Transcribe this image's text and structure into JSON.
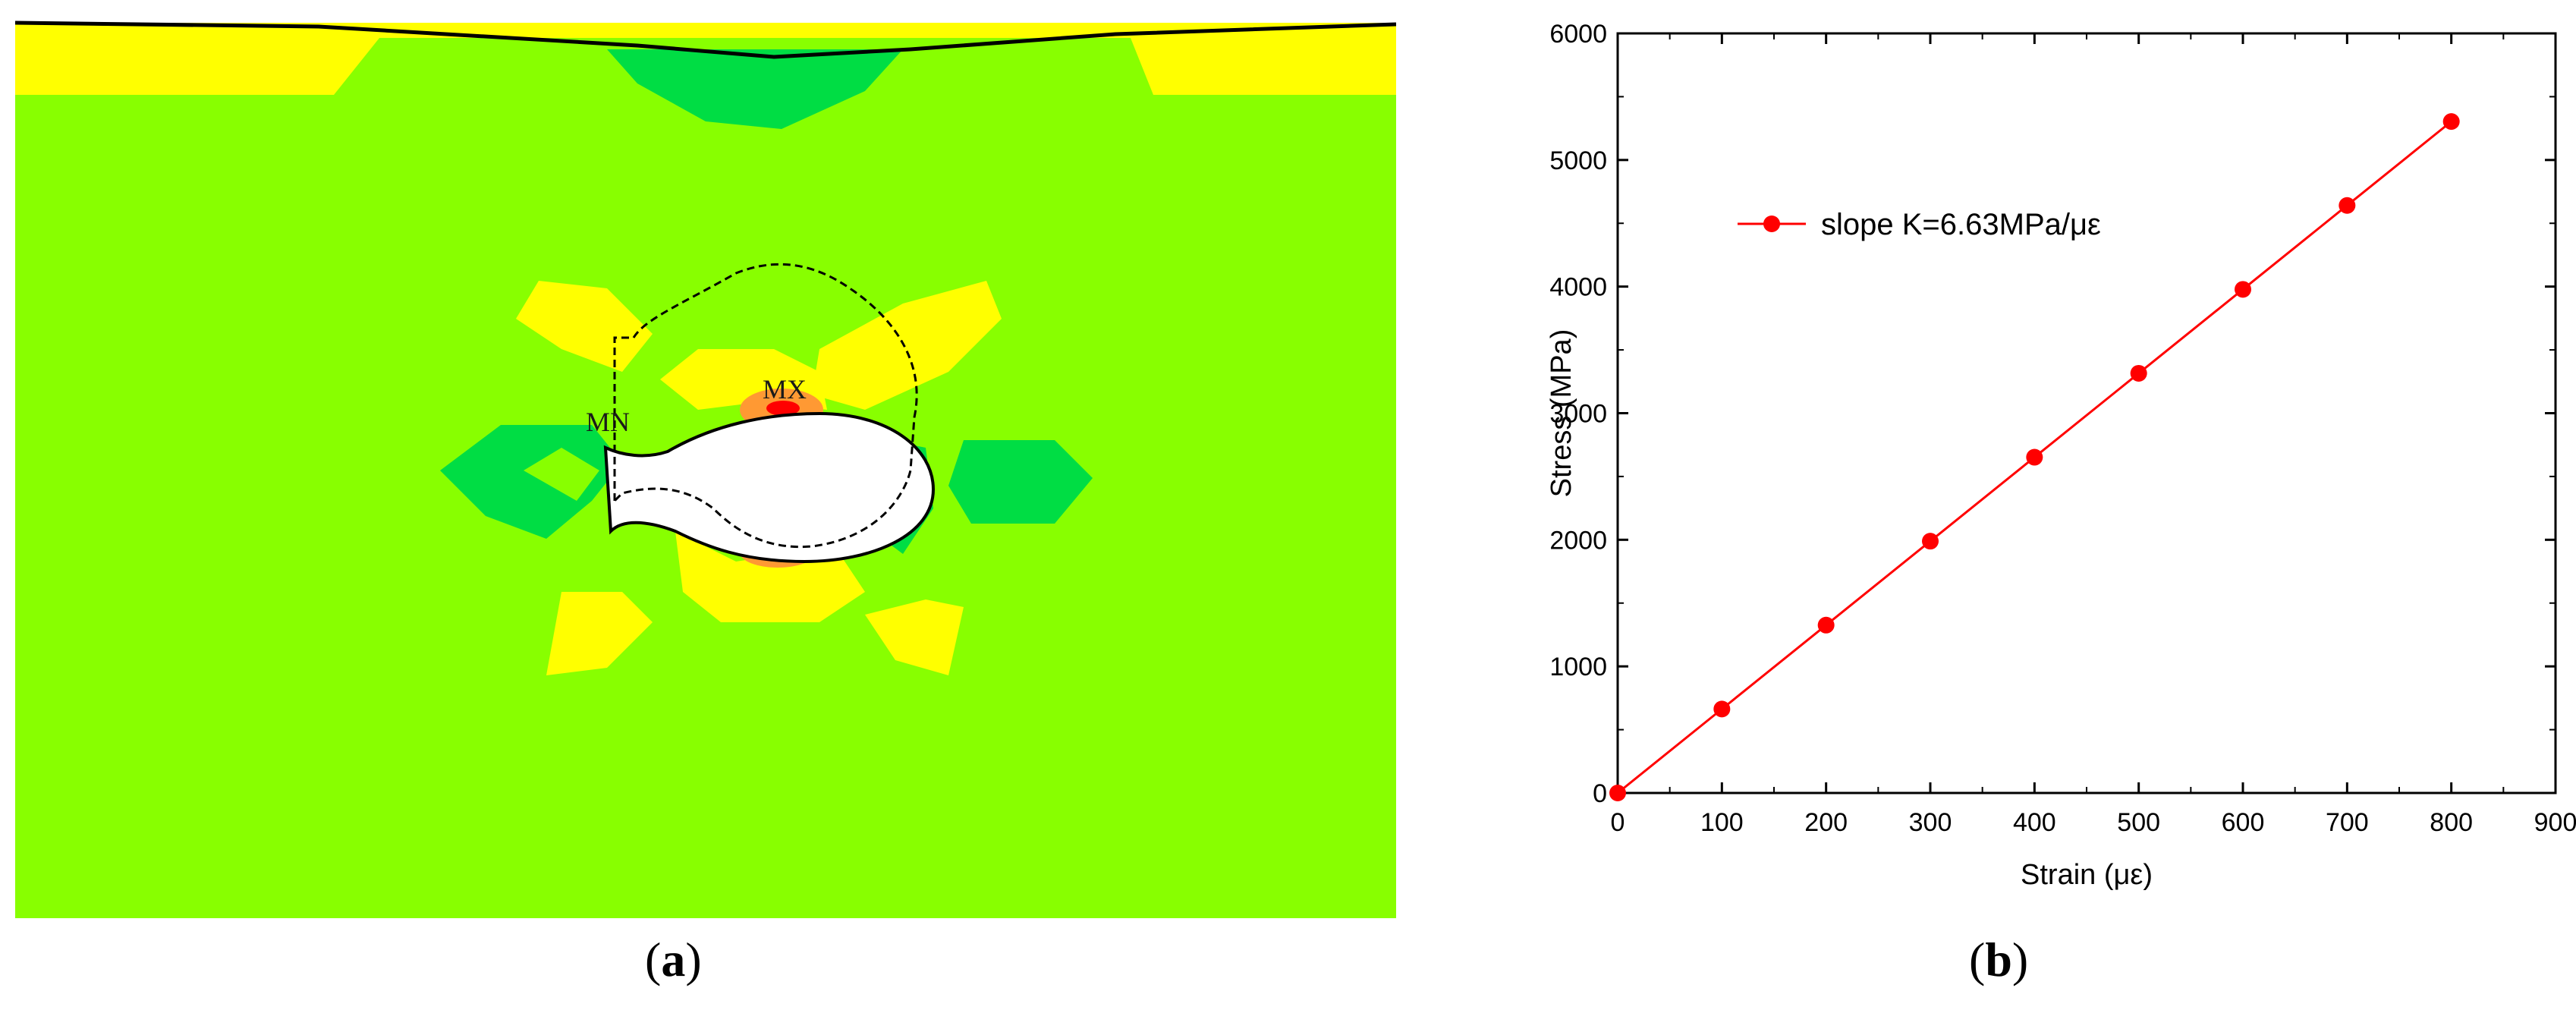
{
  "panel_a": {
    "caption_letter": "a",
    "max_label": "MX",
    "min_label": "MN",
    "colors": {
      "background": "#88ff00",
      "yellow": "#ffff00",
      "green": "#00dd44",
      "orange": "#ff9933",
      "red": "#ff0000",
      "cavity": "#ffffff"
    }
  },
  "panel_b": {
    "caption_letter": "b",
    "chart_data": {
      "type": "line",
      "title": "",
      "xlabel": "Strain (με)",
      "ylabel": "Stress (MPa)",
      "xlim": [
        0,
        900
      ],
      "ylim": [
        0,
        6000
      ],
      "xticks": [
        0,
        100,
        200,
        300,
        400,
        500,
        600,
        700,
        800,
        900
      ],
      "yticks": [
        0,
        1000,
        2000,
        3000,
        4000,
        5000,
        6000
      ],
      "grid": false,
      "legend_position": "top-left",
      "series": [
        {
          "name": "slope  K=6.63MPa/με",
          "color": "#ff0000",
          "marker": "circle",
          "x": [
            0,
            100,
            200,
            300,
            400,
            500,
            600,
            700,
            800
          ],
          "y": [
            0,
            663,
            1326,
            1989,
            2652,
            3315,
            3978,
            4641,
            5304
          ]
        }
      ]
    }
  }
}
